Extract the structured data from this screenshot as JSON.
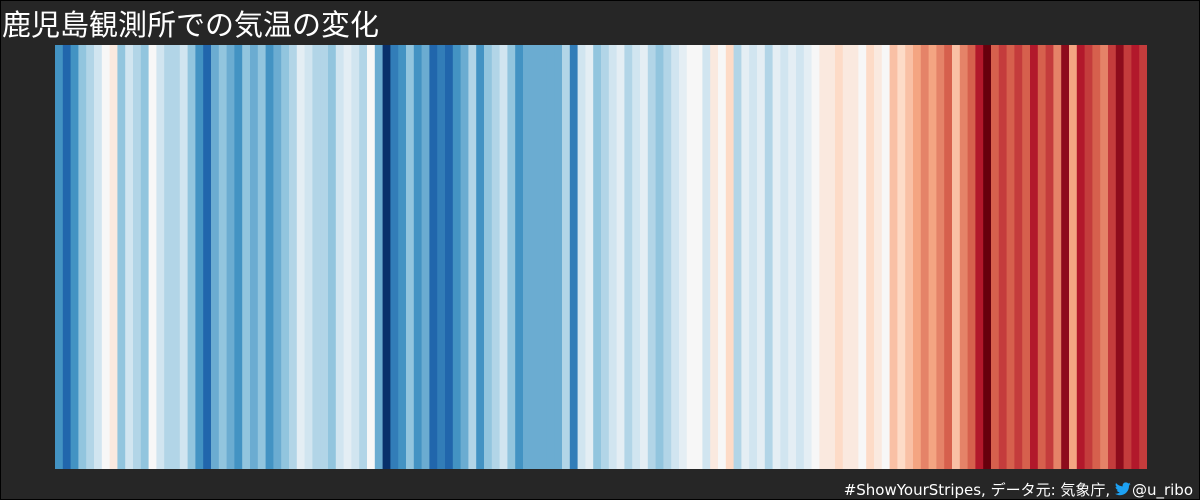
{
  "chart_data": {
    "type": "heatmap",
    "title": "鹿児島観測所での気温の変化",
    "xlabel": "",
    "ylabel": "",
    "grid": false,
    "legend": "none",
    "color_scale": "RdBu_r",
    "series": [
      {
        "values": [
          -0.6,
          -0.8,
          -0.6,
          -0.4,
          -0.3,
          -0.2,
          0.0,
          0.1,
          -0.4,
          -0.2,
          -0.3,
          -0.4,
          0.0,
          -0.2,
          -0.3,
          -0.3,
          -0.2,
          -0.4,
          -0.6,
          -0.8,
          -0.5,
          -0.4,
          -0.5,
          -0.6,
          -0.4,
          -0.5,
          -0.4,
          -0.6,
          -0.5,
          -0.4,
          -0.3,
          -0.1,
          -0.2,
          -0.3,
          -0.3,
          -0.4,
          -0.2,
          -0.1,
          -0.2,
          -0.3,
          0.0,
          -0.5,
          -1.0,
          -0.7,
          -0.6,
          -0.4,
          -0.6,
          -0.5,
          -0.8,
          -0.7,
          -0.8,
          -0.6,
          -0.5,
          -0.3,
          -0.6,
          -0.4,
          -0.3,
          -0.2,
          -0.4,
          -0.6,
          -0.5,
          -0.5,
          -0.5,
          -0.5,
          -0.5,
          -0.3,
          -0.7,
          -0.2,
          -0.1,
          -0.4,
          -0.3,
          -0.2,
          -0.1,
          -0.3,
          -0.2,
          -0.1,
          -0.3,
          -0.4,
          -0.3,
          -0.2,
          -0.1,
          0.0,
          0.0,
          -0.2,
          0.1,
          0.0,
          0.2,
          -0.3,
          -0.1,
          -0.2,
          -0.1,
          -0.3,
          -0.1,
          -0.2,
          -0.1,
          -0.2,
          -0.1,
          0.0,
          0.1,
          0.1,
          0.2,
          0.1,
          0.1,
          0.0,
          0.2,
          0.1,
          0.0,
          0.3,
          0.2,
          0.3,
          0.4,
          0.5,
          0.4,
          0.5,
          0.6,
          0.3,
          0.5,
          0.6,
          0.8,
          1.0,
          0.6,
          0.7,
          0.6,
          0.7,
          0.6,
          0.8,
          0.6,
          0.7,
          0.5,
          0.9,
          0.4,
          0.8,
          0.7,
          0.6,
          0.5,
          0.7,
          0.9,
          0.7,
          0.8,
          0.7
        ]
      }
    ]
  },
  "credit": {
    "text_before_icon": "#ShowYourStripes, データ元: 気象庁, ",
    "icon": "twitter-bird-icon",
    "icon_color": "#1da1f2",
    "handle": "@u_ribo"
  },
  "colors": {
    "background": "#262626",
    "text": "#ffffff",
    "cold_end": "#08306b",
    "warm_end": "#67000d"
  }
}
